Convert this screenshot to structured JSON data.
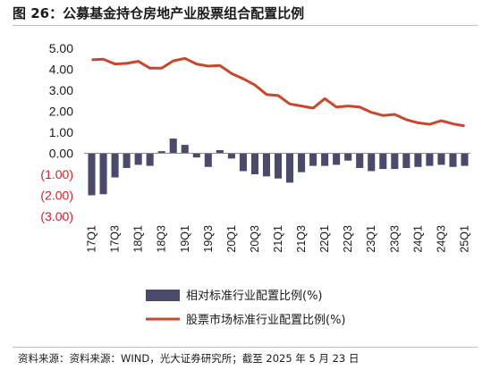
{
  "title": "图 26：公募基金持仓房地产业股票组合配置比例",
  "source": "资料来源：资料来源：WIND，光大证券研究所；截至 2025 年 5 月 23 日",
  "colors": {
    "bar": "#4b4a6b",
    "line": "#c9472b",
    "negative_tick": "#d0202a",
    "positive_tick": "#1a1a1a"
  },
  "chart_data": {
    "type": "bar+line",
    "x": [
      "17Q1",
      "17Q2",
      "17Q3",
      "17Q4",
      "18Q1",
      "18Q2",
      "18Q3",
      "18Q4",
      "19Q1",
      "19Q2",
      "19Q3",
      "19Q4",
      "20Q1",
      "20Q2",
      "20Q3",
      "20Q4",
      "21Q1",
      "21Q2",
      "21Q3",
      "21Q4",
      "22Q1",
      "22Q2",
      "22Q3",
      "22Q4",
      "23Q1",
      "23Q2",
      "23Q3",
      "23Q4",
      "24Q1",
      "24Q2",
      "24Q3",
      "24Q4",
      "25Q1"
    ],
    "x_tick_labels": [
      "17Q1",
      "17Q3",
      "18Q1",
      "18Q3",
      "19Q1",
      "19Q3",
      "20Q1",
      "20Q3",
      "21Q1",
      "21Q3",
      "22Q1",
      "22Q3",
      "23Q1",
      "23Q3",
      "24Q1",
      "24Q3",
      "25Q1"
    ],
    "ylim": [
      -3,
      5
    ],
    "yticks": [
      5,
      4,
      3,
      2,
      1,
      0,
      -1,
      -2,
      -3
    ],
    "ytick_labels": [
      "5.00",
      "4.00",
      "3.00",
      "2.00",
      "1.00",
      "0.00",
      "(1.00)",
      "(2.00)",
      "(3.00)"
    ],
    "series": [
      {
        "name": "相对标准行业配置比例(%)",
        "type": "bar",
        "values": [
          -2.0,
          -1.95,
          -1.15,
          -0.7,
          -0.55,
          -0.6,
          0.1,
          0.7,
          0.4,
          -0.2,
          -0.65,
          0.15,
          -0.25,
          -0.85,
          -1.0,
          -1.1,
          -1.2,
          -1.4,
          -0.9,
          -0.6,
          -0.6,
          -0.55,
          -0.35,
          -0.7,
          -0.85,
          -0.75,
          -0.75,
          -0.7,
          -0.65,
          -0.6,
          -0.55,
          -0.65,
          -0.6
        ]
      },
      {
        "name": "股票市场标准行业配置比例(%)",
        "type": "line",
        "values": [
          4.45,
          4.48,
          4.25,
          4.28,
          4.38,
          4.05,
          4.05,
          4.4,
          4.52,
          4.25,
          4.15,
          4.18,
          3.8,
          3.55,
          3.25,
          2.8,
          2.75,
          2.35,
          2.25,
          2.15,
          2.6,
          2.2,
          2.25,
          2.2,
          1.95,
          1.8,
          1.85,
          1.6,
          1.45,
          1.38,
          1.55,
          1.4,
          1.3
        ]
      }
    ],
    "legend_position": "bottom"
  }
}
